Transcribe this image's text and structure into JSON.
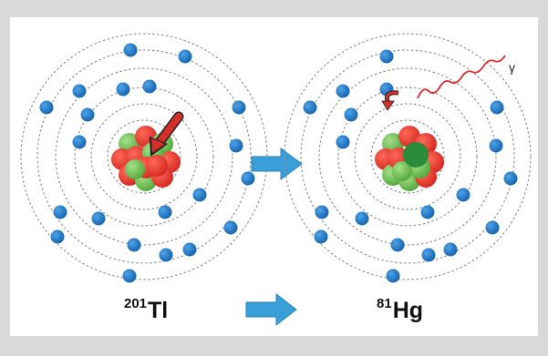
{
  "colors": {
    "electron": "#1f78c8",
    "shell": "#8a8a8a",
    "proton": "#e8332e",
    "neutron": "#6cbf4b",
    "captured": "#2a8c3a",
    "arrow": "#3a9fd8",
    "capture_arrow": "#d42f2a",
    "photon": "#e02b2b"
  },
  "labels": {
    "left_mass": "201",
    "left_symbol": "Tl",
    "right_mass": "81",
    "right_symbol": "Hg",
    "gamma": "γ"
  },
  "icons": {
    "transition_arrow": "right-arrow-icon",
    "electron_capture": "curved-arrow-icon",
    "gamma_ray": "wavy-line-icon"
  }
}
